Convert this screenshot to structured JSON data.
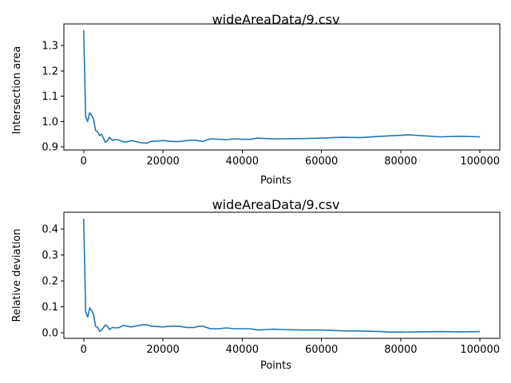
{
  "chart_data": [
    {
      "type": "line",
      "title": "wideAreaData/9.csv",
      "xlabel": "Points",
      "ylabel": "Intersection area",
      "xlim": [
        -5000,
        105000
      ],
      "ylim": [
        0.888,
        1.385
      ],
      "xticks": [
        0,
        20000,
        40000,
        60000,
        80000,
        100000
      ],
      "xtick_labels": [
        "0",
        "20000",
        "40000",
        "60000",
        "80000",
        "100000"
      ],
      "yticks": [
        0.9,
        1.0,
        1.1,
        1.2,
        1.3
      ],
      "ytick_labels": [
        "0.9",
        "1.0",
        "1.1",
        "1.2",
        "1.3"
      ],
      "grid": false,
      "color": "#1f77b4",
      "series": [
        {
          "x": [
            0,
            500,
            1000,
            1500,
            2000,
            2500,
            3000,
            3500,
            4000,
            4500,
            5000,
            5500,
            6000,
            6500,
            7000,
            7500,
            8000,
            9000,
            10000,
            11000,
            12000,
            13000,
            14000,
            15000,
            16000,
            17000,
            18000,
            20000,
            22000,
            24000,
            26000,
            28000,
            30000,
            32000,
            34000,
            36000,
            38000,
            40000,
            42000,
            44000,
            46000,
            48000,
            50000,
            55000,
            60000,
            65000,
            70000,
            75000,
            80000,
            82000,
            85000,
            90000,
            95000,
            100000
          ],
          "y": [
            1.36,
            1.02,
            1.0,
            1.035,
            1.025,
            1.01,
            0.965,
            0.96,
            0.945,
            0.95,
            0.935,
            0.918,
            0.925,
            0.938,
            0.93,
            0.925,
            0.93,
            0.927,
            0.92,
            0.92,
            0.925,
            0.922,
            0.918,
            0.916,
            0.915,
            0.922,
            0.923,
            0.925,
            0.922,
            0.921,
            0.925,
            0.927,
            0.922,
            0.932,
            0.93,
            0.929,
            0.932,
            0.93,
            0.93,
            0.935,
            0.933,
            0.932,
            0.932,
            0.933,
            0.935,
            0.938,
            0.937,
            0.942,
            0.946,
            0.948,
            0.945,
            0.94,
            0.942,
            0.94
          ]
        }
      ]
    },
    {
      "type": "line",
      "title": "wideAreaData/9.csv",
      "xlabel": "Points",
      "ylabel": "Relative deviation",
      "xlim": [
        -5000,
        105000
      ],
      "ylim": [
        -0.022,
        0.465
      ],
      "xticks": [
        0,
        20000,
        40000,
        60000,
        80000,
        100000
      ],
      "xtick_labels": [
        "0",
        "20000",
        "40000",
        "60000",
        "80000",
        "100000"
      ],
      "yticks": [
        0.0,
        0.1,
        0.2,
        0.3,
        0.4
      ],
      "ytick_labels": [
        "0.0",
        "0.1",
        "0.2",
        "0.3",
        "0.4"
      ],
      "grid": false,
      "color": "#1f77b4",
      "series": [
        {
          "x": [
            0,
            500,
            1000,
            1500,
            2000,
            2500,
            3000,
            3500,
            4000,
            4500,
            5000,
            5500,
            6000,
            6500,
            7000,
            7500,
            8000,
            9000,
            10000,
            11000,
            12000,
            13000,
            14000,
            15000,
            16000,
            17000,
            18000,
            20000,
            22000,
            24000,
            26000,
            28000,
            29000,
            30000,
            32000,
            34000,
            36000,
            38000,
            40000,
            42000,
            44000,
            46000,
            48000,
            50000,
            55000,
            60000,
            65000,
            70000,
            75000,
            77000,
            80000,
            85000,
            90000,
            95000,
            100000
          ],
          "y": [
            0.44,
            0.08,
            0.06,
            0.095,
            0.085,
            0.07,
            0.025,
            0.02,
            0.005,
            0.01,
            0.02,
            0.03,
            0.025,
            0.012,
            0.018,
            0.02,
            0.018,
            0.02,
            0.028,
            0.025,
            0.022,
            0.025,
            0.028,
            0.03,
            0.03,
            0.025,
            0.024,
            0.022,
            0.025,
            0.025,
            0.02,
            0.02,
            0.025,
            0.025,
            0.015,
            0.015,
            0.018,
            0.015,
            0.015,
            0.015,
            0.01,
            0.012,
            0.013,
            0.012,
            0.01,
            0.01,
            0.007,
            0.006,
            0.004,
            0.002,
            0.002,
            0.003,
            0.004,
            0.003,
            0.004
          ]
        }
      ]
    }
  ]
}
